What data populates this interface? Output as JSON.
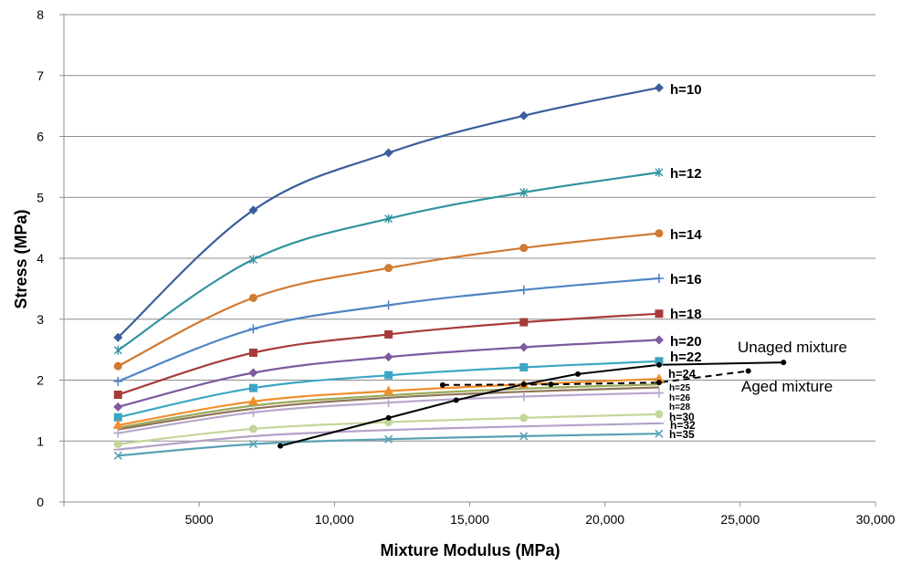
{
  "chart_data": {
    "type": "line",
    "title": "",
    "xlabel": "Mixture Modulus (MPa)",
    "ylabel": "Stress (MPa)",
    "xlim": [
      0,
      30000
    ],
    "ylim": [
      0,
      8
    ],
    "grid": "horizontal",
    "legend": "none",
    "x_ticks": [
      5000,
      10000,
      15000,
      20000,
      25000,
      30000
    ],
    "x_tick_labels": [
      "5000",
      "10,000",
      "15,000",
      "20,000",
      "25,000",
      "30,000"
    ],
    "y_ticks": [
      0,
      1,
      2,
      3,
      4,
      5,
      6,
      7,
      8
    ],
    "y_tick_labels": [
      "0",
      "1",
      "2",
      "3",
      "4",
      "5",
      "6",
      "7",
      "8"
    ],
    "x": [
      2000,
      7000,
      12000,
      17000,
      22000
    ],
    "series": [
      {
        "name": "h=10",
        "color": "#3A5F9C",
        "marker": "diamond",
        "values": [
          2.7,
          4.79,
          5.73,
          6.34,
          6.8
        ]
      },
      {
        "name": "h=12",
        "color": "#31939F",
        "marker": "star",
        "values": [
          2.49,
          3.98,
          4.65,
          5.08,
          5.41
        ]
      },
      {
        "name": "h=14",
        "color": "#D07A32",
        "marker": "circle",
        "values": [
          2.23,
          3.35,
          3.84,
          4.17,
          4.41
        ]
      },
      {
        "name": "h=16",
        "color": "#4E84C4",
        "marker": "plus",
        "values": [
          1.98,
          2.84,
          3.23,
          3.48,
          3.67
        ]
      },
      {
        "name": "h=18",
        "color": "#A63C3A",
        "marker": "square",
        "values": [
          1.76,
          2.45,
          2.75,
          2.95,
          3.09
        ]
      },
      {
        "name": "h=20",
        "color": "#7D5A9F",
        "marker": "diamond",
        "values": [
          1.56,
          2.12,
          2.38,
          2.54,
          2.66
        ]
      },
      {
        "name": "h=22",
        "color": "#3CA6C4",
        "marker": "square",
        "values": [
          1.39,
          1.87,
          2.08,
          2.21,
          2.31
        ]
      },
      {
        "name": "h=24",
        "color": "#F28E2B",
        "marker": "triangle",
        "values": [
          1.26,
          1.65,
          1.82,
          1.93,
          2.02
        ]
      },
      {
        "name": "h=25",
        "color": "#9AAA5A",
        "marker": "none",
        "values": [
          1.22,
          1.58,
          1.75,
          1.86,
          1.93
        ]
      },
      {
        "name": "h=26",
        "color": "#8F7459",
        "marker": "none",
        "values": [
          1.19,
          1.53,
          1.71,
          1.81,
          1.88
        ]
      },
      {
        "name": "h=28",
        "color": "#B8A8CC",
        "marker": "plus",
        "values": [
          1.13,
          1.47,
          1.63,
          1.73,
          1.79
        ]
      },
      {
        "name": "h=30",
        "color": "#C3D69B",
        "marker": "circle",
        "values": [
          0.95,
          1.2,
          1.31,
          1.38,
          1.44
        ]
      },
      {
        "name": "h=32",
        "color": "#B3A2C7",
        "marker": "dash",
        "values": [
          0.86,
          1.08,
          1.18,
          1.24,
          1.29
        ]
      },
      {
        "name": "h=35",
        "color": "#5AA0B4",
        "marker": "x",
        "values": [
          0.76,
          0.95,
          1.03,
          1.08,
          1.12
        ]
      },
      {
        "name": "Unaged mixture",
        "color": "#000000",
        "marker": "dot",
        "dashed": false,
        "curve": false,
        "points": [
          [
            8000,
            0.92
          ],
          [
            12000,
            1.38
          ],
          [
            14500,
            1.67
          ],
          [
            17000,
            1.93
          ],
          [
            19000,
            2.1
          ],
          [
            22000,
            2.25
          ],
          [
            26600,
            2.29
          ]
        ]
      },
      {
        "name": "Aged mixture",
        "color": "#000000",
        "marker": "dot",
        "dashed": true,
        "curve": false,
        "points": [
          [
            14000,
            1.92
          ],
          [
            18000,
            1.93
          ],
          [
            22000,
            1.96
          ],
          [
            25300,
            2.15
          ]
        ]
      }
    ],
    "annotations": [
      "Unaged mixture",
      "Aged mixture"
    ]
  }
}
